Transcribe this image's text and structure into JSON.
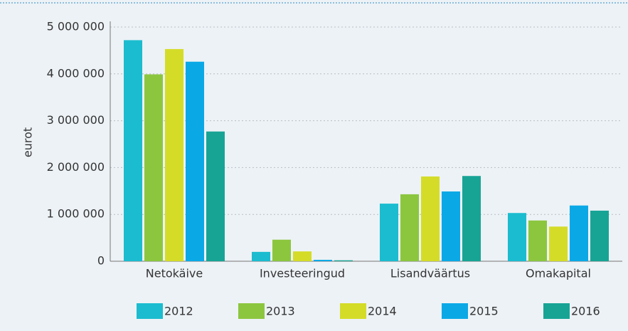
{
  "chart_data": {
    "type": "bar",
    "categories": [
      "Netokäive",
      "Investeeringud",
      "Lisandväärtus",
      "Omakapital"
    ],
    "y_label": "eurot",
    "series": [
      {
        "name": "2012",
        "color": "#1bbccf",
        "values": [
          4720000,
          200000,
          1230000,
          1030000
        ]
      },
      {
        "name": "2013",
        "color": "#8cc63f",
        "values": [
          3990000,
          460000,
          1430000,
          870000
        ]
      },
      {
        "name": "2014",
        "color": "#d4dc28",
        "values": [
          4530000,
          210000,
          1810000,
          740000
        ]
      },
      {
        "name": "2015",
        "color": "#0aa9e6",
        "values": [
          4260000,
          30000,
          1490000,
          1190000
        ]
      },
      {
        "name": "2016",
        "color": "#17a495",
        "values": [
          2770000,
          20000,
          1820000,
          1080000
        ]
      }
    ],
    "ylim": [
      0,
      5000000
    ],
    "yticks": [
      0,
      {
        "value": 1000000,
        "label": "1 000 000"
      },
      {
        "value": 2000000,
        "label": "2 000 000"
      },
      {
        "value": 3000000,
        "label": "3 000 000"
      },
      {
        "value": 4000000,
        "label": "4 000 000"
      },
      {
        "value": 5000000,
        "label": "5 000 000"
      }
    ],
    "grid": true,
    "legend": "bottom"
  }
}
